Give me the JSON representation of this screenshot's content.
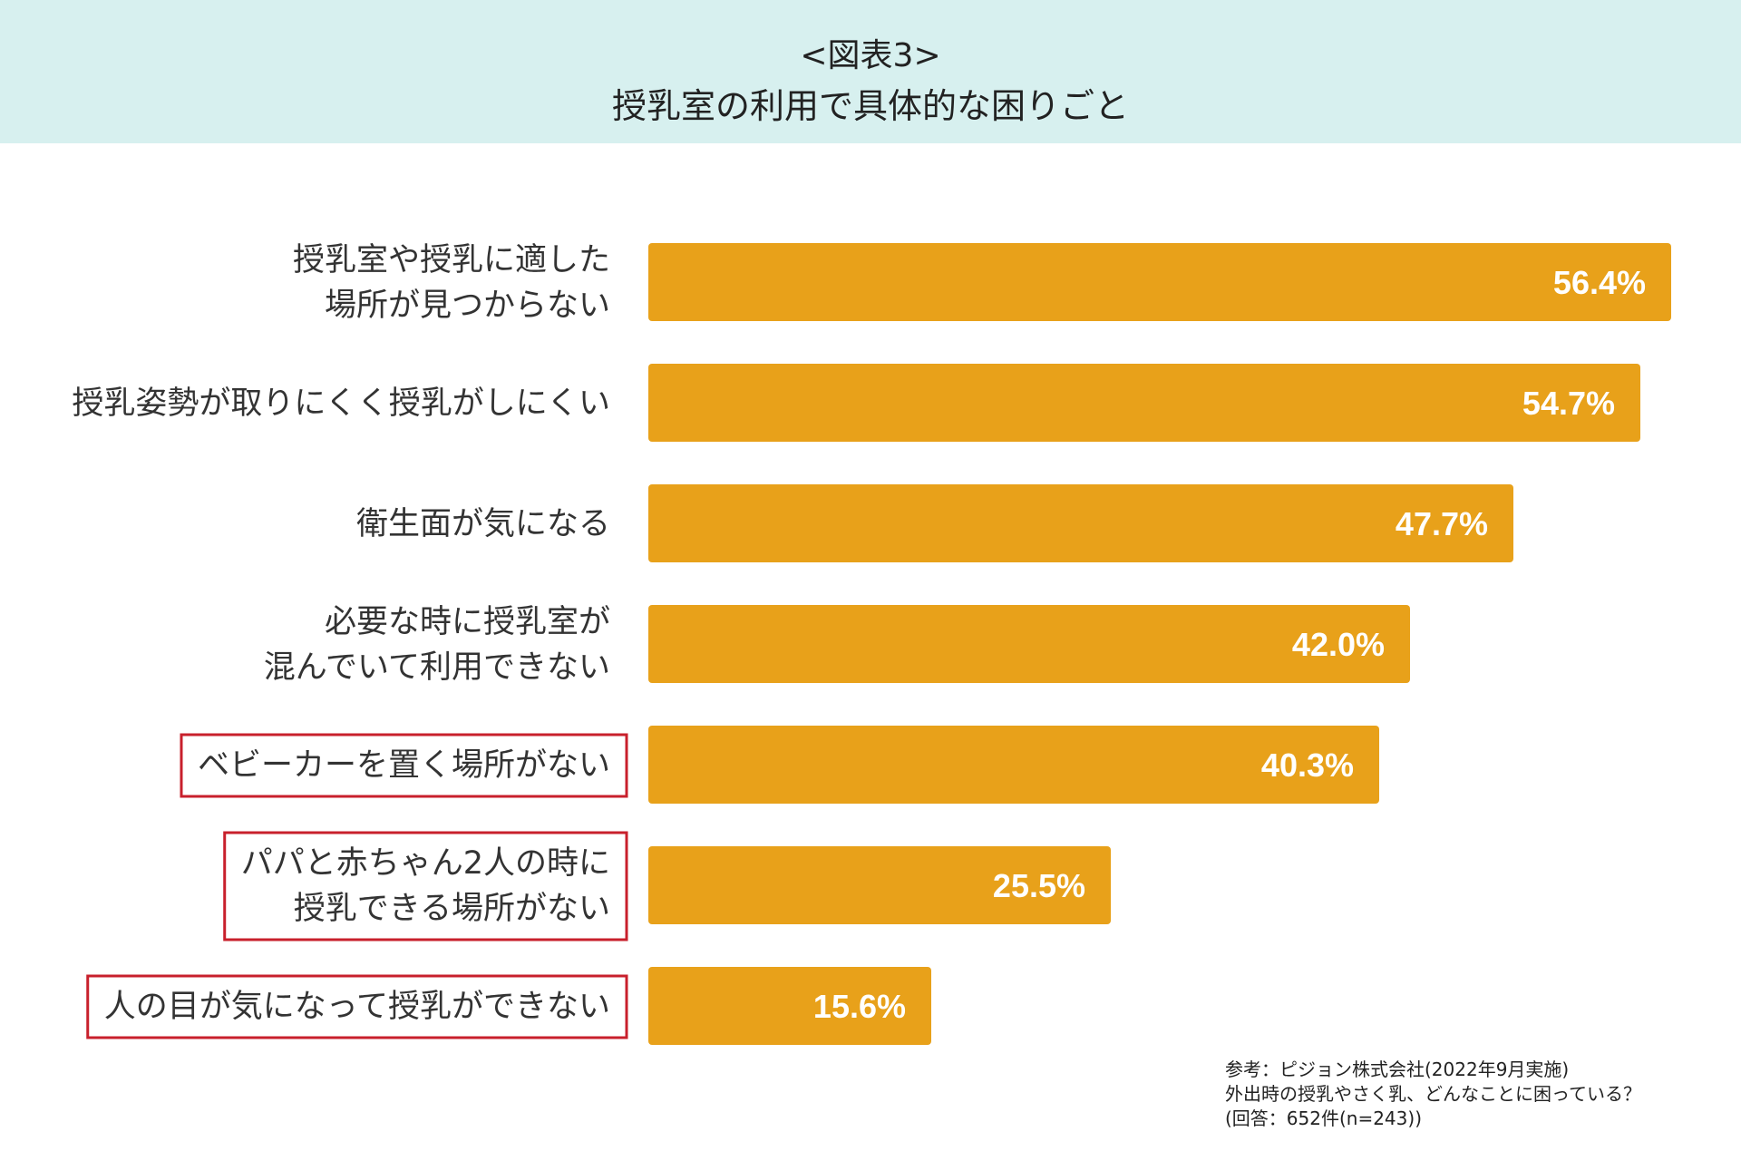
{
  "header": {
    "figure_label": "<図表3>",
    "title": "授乳室の利用で具体的な困りごと"
  },
  "colors": {
    "header_bg": "#d7f0ef",
    "bar": "#e8a11a",
    "bar_label": "#ffffff",
    "highlight_border": "#c8202c",
    "category_text": "#333333"
  },
  "chart_data": {
    "type": "bar",
    "orientation": "horizontal",
    "title": "授乳室の利用で具体的な困りごと",
    "xlabel": "",
    "ylabel": "",
    "xlim": [
      0,
      60
    ],
    "grid": false,
    "unit": "%",
    "categories": [
      [
        "授乳室や授乳に適した",
        "場所が見つからない"
      ],
      [
        "授乳姿勢が取りにくく授乳がしにくい"
      ],
      [
        "衛生面が気になる"
      ],
      [
        "必要な時に授乳室が",
        "混んでいて利用できない"
      ],
      [
        "ベビーカーを置く場所がない"
      ],
      [
        "パパと赤ちゃん2人の時に",
        "授乳できる場所がない"
      ],
      [
        "人の目が気になって授乳ができない"
      ]
    ],
    "values": [
      56.4,
      54.7,
      47.7,
      42.0,
      40.3,
      25.5,
      15.6
    ],
    "value_labels": [
      "56.4%",
      "54.7%",
      "47.7%",
      "42.0%",
      "40.3%",
      "25.5%",
      "15.6%"
    ],
    "highlighted": [
      false,
      false,
      false,
      false,
      true,
      true,
      true
    ]
  },
  "source": {
    "line1": "参考：ピジョン株式会社(2022年9月実施)",
    "line2": "外出時の授乳やさく乳、どんなことに困っている？",
    "line3": "(回答：652件(n=243))"
  }
}
